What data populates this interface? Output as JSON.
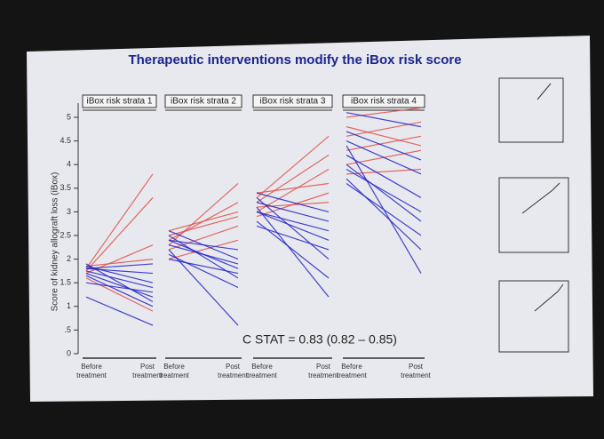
{
  "chart_data": {
    "type": "slope",
    "title": "Therapeutic interventions modify the iBox risk score",
    "y_label": "Score of kidney allograft loss (iBox)",
    "ylim": [
      0,
      5.3
    ],
    "yticks": [
      0,
      {
        "value": 0.5,
        "label": ".5"
      },
      1,
      1.5,
      2,
      2.5,
      3,
      3.5,
      4,
      4.5,
      5
    ],
    "annotation": "C STAT = 0.83 (0.82 – 0.85)",
    "panels": [
      {
        "name": "iBox risk strata 1",
        "x_labels": [
          [
            "Before",
            "treatment"
          ],
          [
            "Post",
            "treatment"
          ]
        ],
        "series": [
          {
            "color": "#e0504a",
            "values": [
              1.8,
              3.8
            ]
          },
          {
            "color": "#e0504a",
            "values": [
              1.75,
              3.3
            ]
          },
          {
            "color": "#e0504a",
            "values": [
              1.7,
              2.3
            ]
          },
          {
            "color": "#e0504a",
            "values": [
              1.85,
              2.0
            ]
          },
          {
            "color": "#e0504a",
            "values": [
              1.6,
              0.9
            ]
          },
          {
            "color": "#2424c8",
            "values": [
              1.8,
              1.7
            ]
          },
          {
            "color": "#2424c8",
            "values": [
              1.75,
              1.4
            ]
          },
          {
            "color": "#2424c8",
            "values": [
              1.7,
              1.2
            ]
          },
          {
            "color": "#2424c8",
            "values": [
              1.85,
              1.5
            ]
          },
          {
            "color": "#2424c8",
            "values": [
              1.65,
              1.0
            ]
          },
          {
            "color": "#2424c8",
            "values": [
              1.8,
              1.9
            ]
          },
          {
            "color": "#2424c8",
            "values": [
              1.2,
              0.6
            ]
          },
          {
            "color": "#2424c8",
            "values": [
              1.9,
              1.1
            ]
          },
          {
            "color": "#2424c8",
            "values": [
              1.5,
              1.3
            ]
          }
        ]
      },
      {
        "name": "iBox risk strata 2",
        "x_labels": [
          [
            "Before",
            "treatment"
          ],
          [
            "Post",
            "treatment"
          ]
        ],
        "series": [
          {
            "color": "#e0504a",
            "values": [
              2.3,
              3.6
            ]
          },
          {
            "color": "#e0504a",
            "values": [
              2.4,
              3.2
            ]
          },
          {
            "color": "#e0504a",
            "values": [
              2.5,
              2.9
            ]
          },
          {
            "color": "#e0504a",
            "values": [
              2.2,
              2.7
            ]
          },
          {
            "color": "#e0504a",
            "values": [
              2.6,
              3.0
            ]
          },
          {
            "color": "#e0504a",
            "values": [
              2.0,
              2.4
            ]
          },
          {
            "color": "#2424c8",
            "values": [
              2.4,
              2.2
            ]
          },
          {
            "color": "#2424c8",
            "values": [
              2.3,
              1.9
            ]
          },
          {
            "color": "#2424c8",
            "values": [
              2.5,
              1.6
            ]
          },
          {
            "color": "#2424c8",
            "values": [
              2.1,
              1.4
            ]
          },
          {
            "color": "#2424c8",
            "values": [
              2.2,
              0.6
            ]
          },
          {
            "color": "#2424c8",
            "values": [
              2.6,
              2.0
            ]
          },
          {
            "color": "#2424c8",
            "values": [
              2.4,
              1.8
            ]
          },
          {
            "color": "#2424c8",
            "values": [
              2.0,
              1.7
            ]
          }
        ]
      },
      {
        "name": "iBox risk strata 3",
        "x_labels": [
          [
            "Before",
            "treatment"
          ],
          [
            "Post",
            "treatment"
          ]
        ],
        "series": [
          {
            "color": "#e0504a",
            "values": [
              3.3,
              4.6
            ]
          },
          {
            "color": "#e0504a",
            "values": [
              3.2,
              4.2
            ]
          },
          {
            "color": "#e0504a",
            "values": [
              3.0,
              3.9
            ]
          },
          {
            "color": "#e0504a",
            "values": [
              3.4,
              3.6
            ]
          },
          {
            "color": "#e0504a",
            "values": [
              2.9,
              3.4
            ]
          },
          {
            "color": "#e0504a",
            "values": [
              3.1,
              3.2
            ]
          },
          {
            "color": "#2424c8",
            "values": [
              3.2,
              2.8
            ]
          },
          {
            "color": "#2424c8",
            "values": [
              3.0,
              2.4
            ]
          },
          {
            "color": "#2424c8",
            "values": [
              3.3,
              2.0
            ]
          },
          {
            "color": "#2424c8",
            "values": [
              2.8,
              1.6
            ]
          },
          {
            "color": "#2424c8",
            "values": [
              3.1,
              1.2
            ]
          },
          {
            "color": "#2424c8",
            "values": [
              2.7,
              2.2
            ]
          },
          {
            "color": "#2424c8",
            "values": [
              3.4,
              3.0
            ]
          },
          {
            "color": "#2424c8",
            "values": [
              3.0,
              2.6
            ]
          }
        ]
      },
      {
        "name": "iBox risk strata 4",
        "x_labels": [
          [
            "Before",
            "treatment"
          ],
          [
            "Post",
            "treatment"
          ]
        ],
        "series": [
          {
            "color": "#e0504a",
            "values": [
              5.0,
              5.2
            ]
          },
          {
            "color": "#e0504a",
            "values": [
              4.6,
              4.9
            ]
          },
          {
            "color": "#e0504a",
            "values": [
              4.3,
              4.6
            ]
          },
          {
            "color": "#e0504a",
            "values": [
              4.0,
              4.3
            ]
          },
          {
            "color": "#e0504a",
            "values": [
              4.8,
              4.4
            ]
          },
          {
            "color": "#e0504a",
            "values": [
              3.8,
              3.9
            ]
          },
          {
            "color": "#2424c8",
            "values": [
              5.1,
              4.8
            ]
          },
          {
            "color": "#2424c8",
            "values": [
              4.5,
              3.8
            ]
          },
          {
            "color": "#2424c8",
            "values": [
              4.2,
              3.3
            ]
          },
          {
            "color": "#2424c8",
            "values": [
              4.0,
              2.8
            ]
          },
          {
            "color": "#2424c8",
            "values": [
              3.7,
              2.2
            ]
          },
          {
            "color": "#2424c8",
            "values": [
              4.4,
              1.7
            ]
          },
          {
            "color": "#2424c8",
            "values": [
              3.9,
              3.0
            ]
          },
          {
            "color": "#2424c8",
            "values": [
              4.7,
              4.1
            ]
          },
          {
            "color": "#2424c8",
            "values": [
              3.6,
              2.5
            ]
          }
        ]
      }
    ]
  }
}
